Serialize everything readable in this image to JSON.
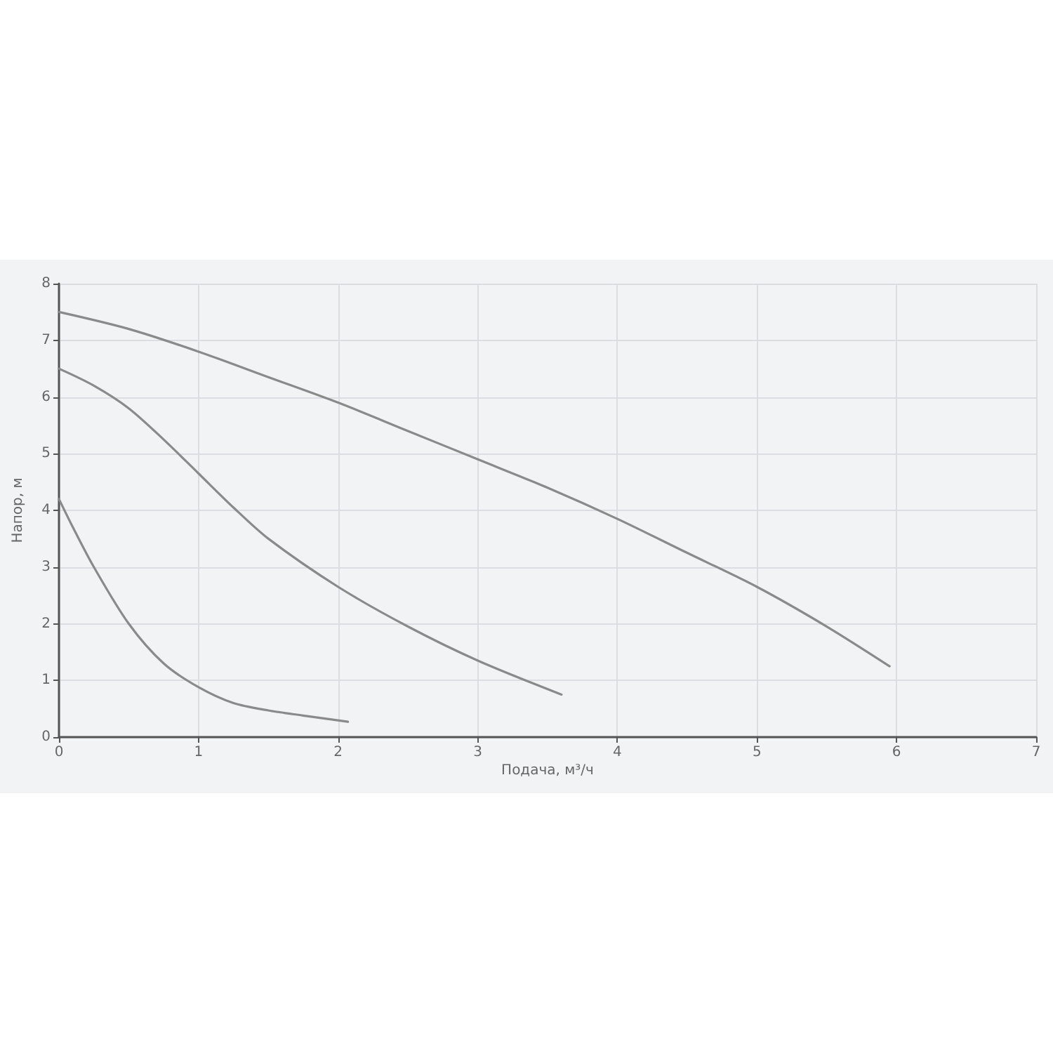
{
  "chart_data": {
    "type": "line",
    "xlabel": "Подача, м³/ч",
    "ylabel": "Напор, м",
    "xlim": [
      0,
      7
    ],
    "ylim": [
      0,
      8
    ],
    "xticks": [
      0,
      1,
      2,
      3,
      4,
      5,
      6,
      7
    ],
    "yticks": [
      0,
      1,
      2,
      3,
      4,
      5,
      6,
      7,
      8
    ],
    "grid": true,
    "marker": "none",
    "line_style": "solid",
    "series": [
      {
        "color": "#8a8a8a",
        "x": [
          0,
          0.5,
          1,
          1.5,
          2,
          2.5,
          3,
          3.5,
          4,
          4.5,
          5,
          5.5,
          5.95
        ],
        "values": [
          7.5,
          7.2,
          6.8,
          6.35,
          5.9,
          5.4,
          4.9,
          4.4,
          3.85,
          3.25,
          2.65,
          1.95,
          1.25
        ]
      },
      {
        "color": "#8a8a8a",
        "x": [
          0,
          0.25,
          0.5,
          0.75,
          1,
          1.25,
          1.5,
          2,
          2.5,
          3,
          3.6
        ],
        "values": [
          6.5,
          6.2,
          5.8,
          5.25,
          4.65,
          4.05,
          3.5,
          2.65,
          1.95,
          1.35,
          0.75
        ]
      },
      {
        "color": "#8a8a8a",
        "x": [
          0,
          0.1,
          0.25,
          0.5,
          0.75,
          1,
          1.25,
          1.5,
          1.75,
          2.07
        ],
        "values": [
          4.2,
          3.7,
          3.0,
          2.0,
          1.3,
          0.88,
          0.6,
          0.47,
          0.38,
          0.27
        ]
      }
    ]
  }
}
